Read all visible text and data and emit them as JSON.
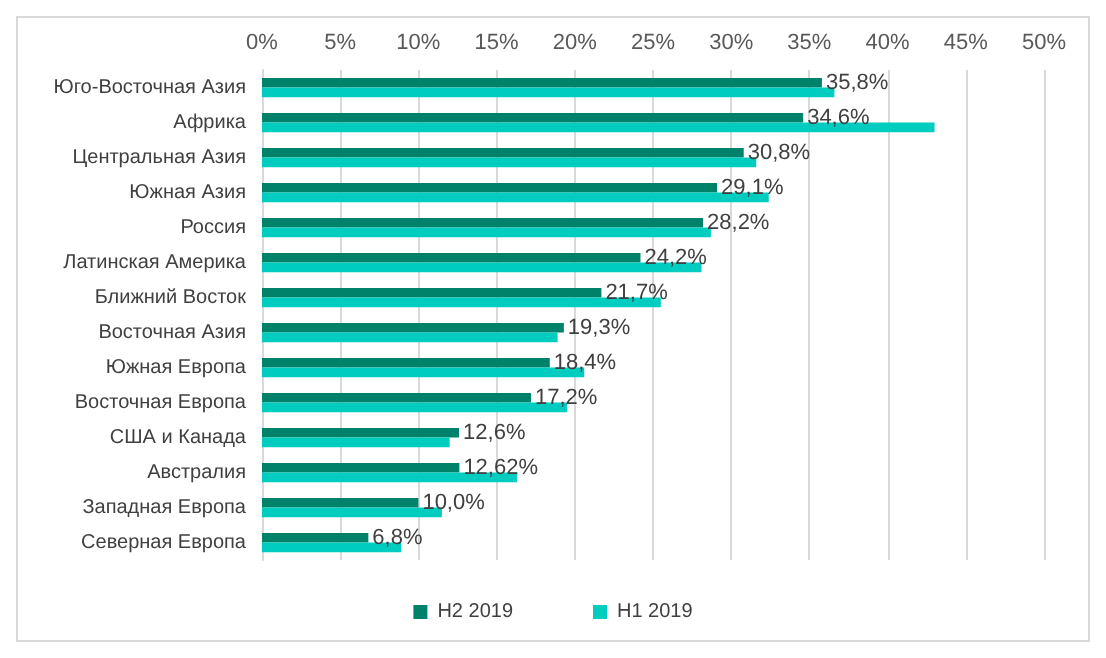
{
  "chart_data": {
    "type": "bar",
    "orientation": "horizontal",
    "categories": [
      "Юго-Восточная Азия",
      "Африка",
      "Центральная Азия",
      "Южная Азия",
      "Россия",
      "Латинская Америка",
      "Ближний Восток",
      "Восточная Азия",
      "Южная Европа",
      "Восточная Европа",
      "США и Канада",
      "Австралия",
      "Западная Европа",
      "Северная Европа"
    ],
    "series": [
      {
        "name": "H2 2019",
        "color": "#00826a",
        "values": [
          35.8,
          34.6,
          30.8,
          29.1,
          28.2,
          24.2,
          21.7,
          19.3,
          18.4,
          17.2,
          12.6,
          12.62,
          10.0,
          6.8
        ],
        "value_labels": [
          "35,8%",
          "34,6%",
          "30,8%",
          "29,1%",
          "28,2%",
          "24,2%",
          "21,7%",
          "19,3%",
          "18,4%",
          "17,2%",
          "12,6%",
          "12,62%",
          "10,0%",
          "6,8%"
        ]
      },
      {
        "name": "H1 2019",
        "color": "#00cdbf",
        "values": [
          36.6,
          43.0,
          31.6,
          32.4,
          28.7,
          28.1,
          25.5,
          18.9,
          20.6,
          19.5,
          12.0,
          16.3,
          11.5,
          8.9
        ]
      }
    ],
    "xlim": [
      0,
      50
    ],
    "xticks": [
      {
        "value": 0,
        "label": "0%"
      },
      {
        "value": 5,
        "label": "5%"
      },
      {
        "value": 10,
        "label": "10%"
      },
      {
        "value": 15,
        "label": "15%"
      },
      {
        "value": 20,
        "label": "20%"
      },
      {
        "value": 25,
        "label": "25%"
      },
      {
        "value": 30,
        "label": "30%"
      },
      {
        "value": 35,
        "label": "35%"
      },
      {
        "value": 40,
        "label": "40%"
      },
      {
        "value": 45,
        "label": "45%"
      },
      {
        "value": 50,
        "label": "50%"
      }
    ],
    "grid": "x",
    "legend": "bottom"
  }
}
